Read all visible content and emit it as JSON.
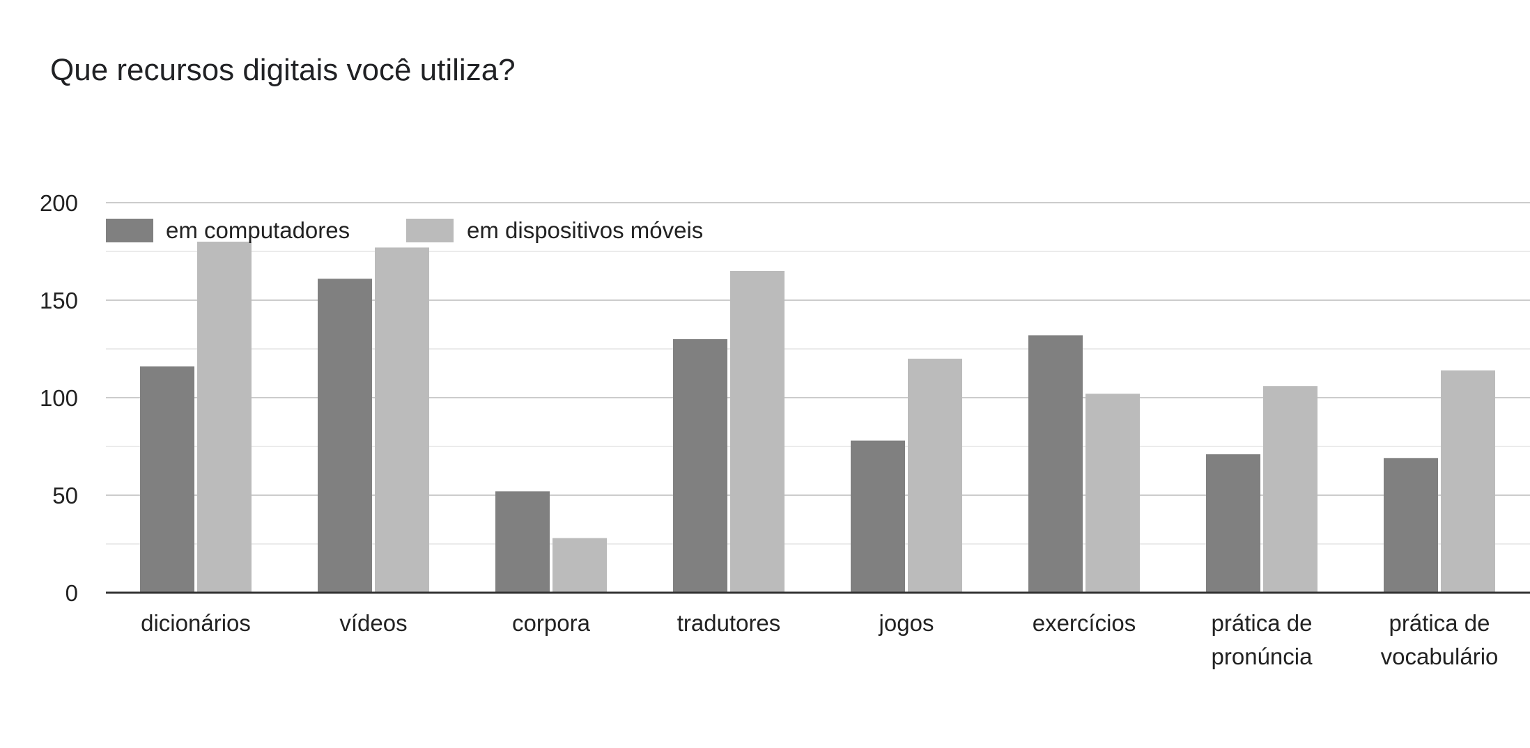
{
  "chart_data": {
    "type": "bar",
    "title": "Que recursos digitais você utiliza?",
    "categories": [
      [
        "dicionários"
      ],
      [
        "vídeos"
      ],
      [
        "corpora"
      ],
      [
        "tradutores"
      ],
      [
        "jogos"
      ],
      [
        "exercícios"
      ],
      [
        "prática de",
        "pronúncia"
      ],
      [
        "prática de",
        "vocabulário"
      ]
    ],
    "series": [
      {
        "name": "em computadores",
        "color": "#808080",
        "values": [
          116,
          161,
          52,
          130,
          78,
          132,
          71,
          69
        ]
      },
      {
        "name": "em dispositivos móveis",
        "color": "#bbbbbb",
        "values": [
          180,
          177,
          28,
          165,
          120,
          102,
          106,
          114
        ]
      }
    ],
    "y_ticks": [
      0,
      50,
      100,
      150,
      200
    ],
    "ylim": [
      0,
      200
    ],
    "grid": true,
    "legend_position": "top-left"
  }
}
